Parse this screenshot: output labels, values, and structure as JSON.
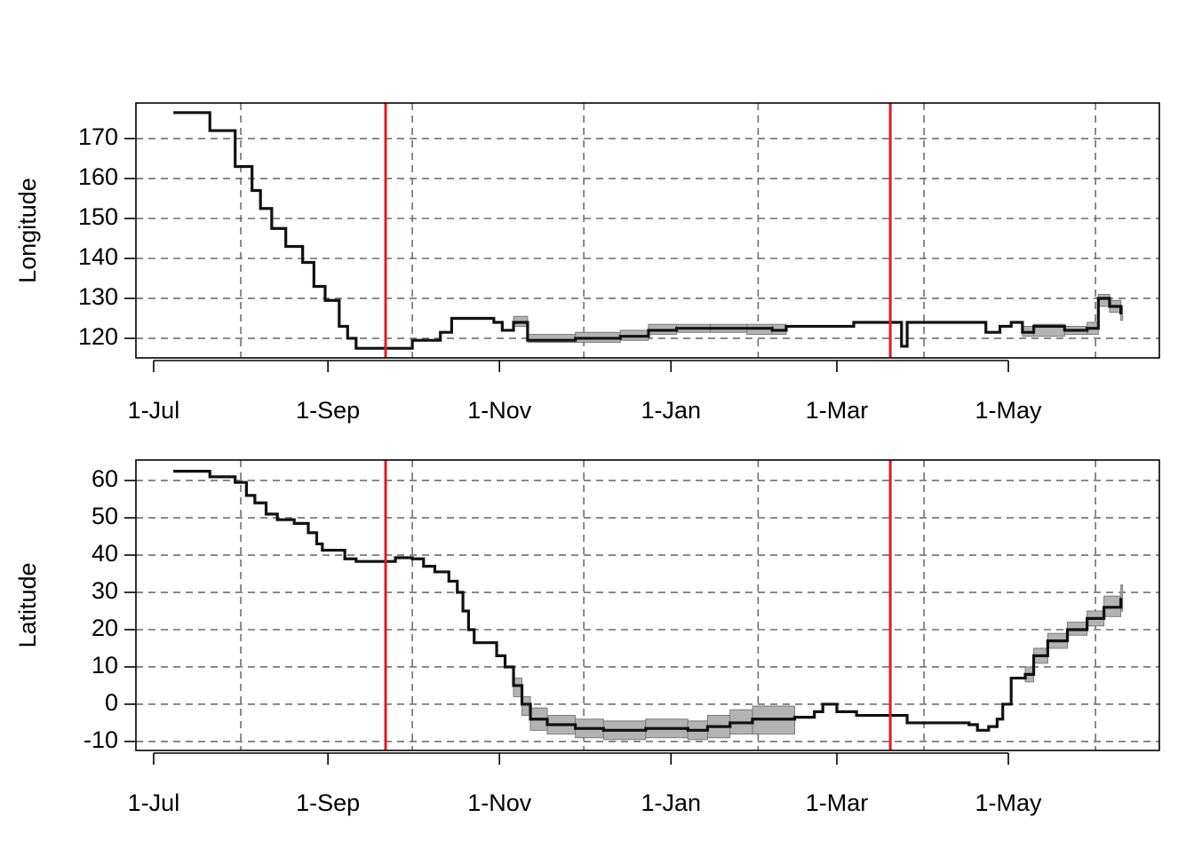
{
  "chart_data": [
    {
      "type": "line",
      "y_label": "Longitude",
      "step": true,
      "grid": true,
      "xlim": [
        -6.3,
        357.7
      ],
      "xticks": [
        {
          "value": 0,
          "label": "1-Jul"
        },
        {
          "value": 62,
          "label": "1-Sep"
        },
        {
          "value": 123,
          "label": "1-Nov"
        },
        {
          "value": 184,
          "label": "1-Jan"
        },
        {
          "value": 243,
          "label": "1-Mar"
        },
        {
          "value": 304,
          "label": "1-May"
        }
      ],
      "xgrid": [
        31,
        92,
        153,
        215,
        274,
        335
      ],
      "vlines": [
        82.5,
        262
      ],
      "vline_color": "#e8191c",
      "ylim": [
        115.1,
        178.9
      ],
      "yticks": [
        120,
        130,
        140,
        150,
        160,
        170
      ],
      "x": [
        7,
        20,
        29,
        35,
        38,
        42,
        47,
        53,
        57,
        61,
        66,
        69,
        72,
        92,
        102,
        106,
        111,
        121,
        124,
        128,
        133,
        150,
        166,
        176,
        186,
        198,
        211,
        220,
        225,
        249,
        262,
        266,
        268,
        293,
        296,
        301,
        305,
        309,
        313,
        324,
        332,
        336,
        340,
        344
      ],
      "series": [
        {
          "color": "#111111",
          "band_color": "#b3b3b3",
          "values": [
            176.5,
            172,
            163,
            157,
            152.5,
            147.5,
            143,
            139,
            133,
            129.5,
            123,
            120,
            117.5,
            119.5,
            121.5,
            125,
            125,
            124,
            122,
            124,
            119.5,
            120,
            120.5,
            122,
            122.5,
            122.5,
            122.5,
            122,
            123,
            124,
            124,
            118,
            124,
            124,
            121.5,
            123,
            124,
            121.5,
            123,
            122,
            122.5,
            130,
            128,
            126
          ],
          "lower": [
            null,
            null,
            null,
            null,
            null,
            null,
            null,
            null,
            null,
            null,
            null,
            null,
            null,
            null,
            null,
            null,
            null,
            null,
            null,
            123,
            119,
            119,
            119.5,
            121,
            121.5,
            121.5,
            121,
            121,
            null,
            null,
            null,
            null,
            null,
            null,
            null,
            null,
            null,
            120.5,
            120.5,
            121,
            121,
            128,
            126.5,
            124.5
          ],
          "upper": [
            null,
            null,
            null,
            null,
            null,
            null,
            null,
            null,
            null,
            null,
            null,
            null,
            null,
            null,
            null,
            null,
            null,
            null,
            null,
            125.5,
            121,
            121.5,
            122,
            123.5,
            123.5,
            123.5,
            123.5,
            123.5,
            null,
            null,
            null,
            null,
            null,
            null,
            null,
            null,
            null,
            123,
            123.5,
            123,
            124,
            131,
            129.5,
            128
          ]
        }
      ]
    },
    {
      "type": "line",
      "y_label": "Latitude",
      "step": true,
      "grid": true,
      "xlim": [
        -6.3,
        357.7
      ],
      "xticks": [
        {
          "value": 0,
          "label": "1-Jul"
        },
        {
          "value": 62,
          "label": "1-Sep"
        },
        {
          "value": 123,
          "label": "1-Nov"
        },
        {
          "value": 184,
          "label": "1-Jan"
        },
        {
          "value": 243,
          "label": "1-Mar"
        },
        {
          "value": 304,
          "label": "1-May"
        }
      ],
      "xgrid": [
        31,
        92,
        153,
        215,
        274,
        335
      ],
      "vlines": [
        82.5,
        262
      ],
      "vline_color": "#e8191c",
      "ylim": [
        -12.4,
        65.5
      ],
      "yticks": [
        -10,
        0,
        10,
        20,
        30,
        40,
        50,
        60
      ],
      "x": [
        7,
        20,
        29,
        33,
        36,
        40,
        44,
        50,
        55,
        58,
        60,
        68,
        72,
        86,
        92,
        96,
        100,
        105,
        108,
        110,
        112,
        114,
        118,
        122,
        125,
        128,
        131,
        134,
        140,
        150,
        160,
        175,
        190,
        197,
        205,
        213,
        228,
        235,
        238,
        243,
        250,
        262,
        268,
        290,
        293,
        297,
        300,
        302,
        305,
        310,
        313,
        318,
        325,
        332,
        338,
        344
      ],
      "series": [
        {
          "color": "#111111",
          "band_color": "#b3b3b3",
          "values": [
            62.5,
            61,
            59.5,
            56,
            54,
            51,
            49.5,
            48.5,
            46,
            43,
            41.3,
            39,
            38.3,
            39.3,
            39,
            37,
            35.5,
            33,
            30,
            25,
            20,
            16.5,
            16.5,
            13,
            10,
            5,
            0,
            -4,
            -5.5,
            -6.5,
            -7,
            -6.5,
            -7,
            -6,
            -5,
            -4,
            -3.5,
            -2,
            0,
            -2,
            -3,
            -3,
            -5,
            -5.5,
            -7,
            -6,
            -4,
            0,
            7,
            8,
            13,
            17,
            20,
            23,
            26,
            28.5
          ],
          "lower": [
            null,
            null,
            null,
            null,
            null,
            null,
            null,
            null,
            null,
            null,
            null,
            null,
            null,
            null,
            null,
            null,
            null,
            null,
            null,
            null,
            null,
            null,
            null,
            null,
            null,
            2,
            -3,
            -7,
            -8,
            -9,
            -9.5,
            -9,
            -9.5,
            -9,
            -8,
            -8,
            null,
            null,
            null,
            null,
            null,
            null,
            null,
            null,
            null,
            null,
            null,
            null,
            null,
            6,
            11,
            15,
            18.5,
            21,
            23.5,
            25
          ],
          "upper": [
            null,
            null,
            null,
            null,
            null,
            null,
            null,
            null,
            null,
            null,
            null,
            null,
            null,
            null,
            null,
            null,
            null,
            null,
            null,
            null,
            null,
            null,
            null,
            null,
            null,
            7,
            2,
            -1,
            -3,
            -4,
            -4.5,
            -4,
            -4.5,
            -3,
            -1.5,
            -0.5,
            null,
            null,
            null,
            null,
            null,
            null,
            null,
            null,
            null,
            null,
            null,
            null,
            null,
            10,
            15,
            19,
            22,
            25,
            29,
            32
          ]
        }
      ]
    }
  ]
}
